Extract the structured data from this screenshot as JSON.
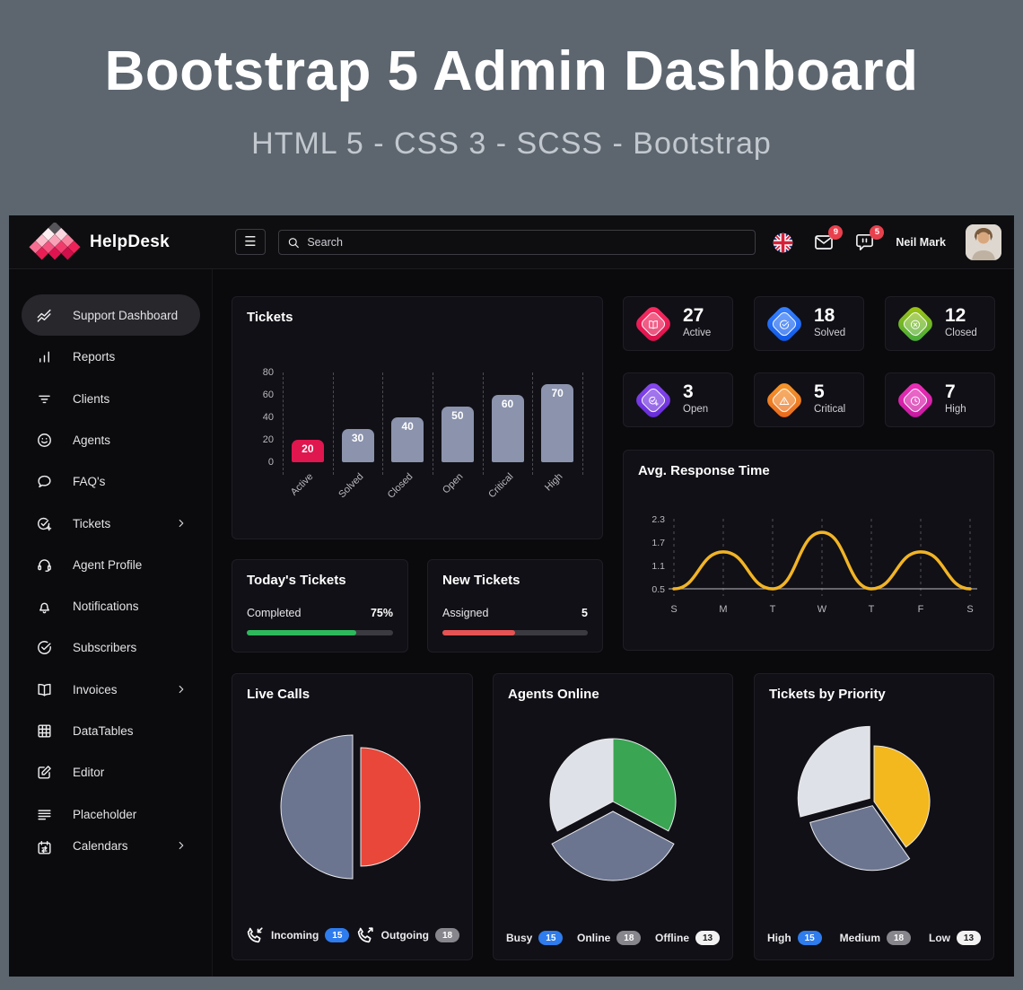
{
  "banner": {
    "title": "Bootstrap 5 Admin Dashboard",
    "subtitle": "HTML 5 - CSS 3 - SCSS - Bootstrap",
    "bg_color": "#5d666f"
  },
  "navbar": {
    "brand": "HelpDesk",
    "search_placeholder": "Search",
    "mail_badge": "9",
    "chat_badge": "5",
    "user_name": "Neil Mark",
    "badge_color": "#e8414d"
  },
  "sidebar": {
    "items": [
      {
        "label": "Support Dashboard",
        "icon": "trend",
        "active": true,
        "chevron": false
      },
      {
        "label": "Reports",
        "icon": "bar-chart",
        "active": false,
        "chevron": false
      },
      {
        "label": "Clients",
        "icon": "filter",
        "active": false,
        "chevron": false
      },
      {
        "label": "Agents",
        "icon": "smiley",
        "active": false,
        "chevron": false
      },
      {
        "label": "FAQ's",
        "icon": "chat",
        "active": false,
        "chevron": false
      },
      {
        "label": "Tickets",
        "icon": "ticket-check",
        "active": false,
        "chevron": true
      },
      {
        "label": "Agent Profile",
        "icon": "headset",
        "active": false,
        "chevron": false
      },
      {
        "label": "Notifications",
        "icon": "bell",
        "active": false,
        "chevron": false
      },
      {
        "label": "Subscribers",
        "icon": "check-circle",
        "active": false,
        "chevron": false
      },
      {
        "label": "Invoices",
        "icon": "book",
        "active": false,
        "chevron": true
      },
      {
        "label": "DataTables",
        "icon": "grid",
        "active": false,
        "chevron": false
      },
      {
        "label": "Editor",
        "icon": "edit",
        "active": false,
        "chevron": false
      },
      {
        "label": "Placeholder",
        "icon": "text-lines",
        "active": false,
        "chevron": false
      },
      {
        "label": "Calendars",
        "icon": "calendar",
        "active": false,
        "chevron": true,
        "clipped": true
      }
    ]
  },
  "stat_cards": [
    {
      "value": "27",
      "label": "Active",
      "glyph": "book",
      "gradient": [
        "#fb2e63",
        "#d90f4b"
      ]
    },
    {
      "value": "18",
      "label": "Solved",
      "glyph": "check-circle",
      "gradient": [
        "#3d86ff",
        "#0a54e8"
      ]
    },
    {
      "value": "12",
      "label": "Closed",
      "glyph": "x-circle",
      "gradient": [
        "#a6c410",
        "#3fa93f"
      ]
    },
    {
      "value": "3",
      "label": "Open",
      "glyph": "check-plus",
      "gradient": [
        "#8a4bf0",
        "#6429d6"
      ]
    },
    {
      "value": "5",
      "label": "Critical",
      "glyph": "alert-triangle",
      "gradient": [
        "#f69a2d",
        "#e9661b"
      ]
    },
    {
      "value": "7",
      "label": "High",
      "glyph": "clock",
      "gradient": [
        "#ef32b8",
        "#c3179f"
      ]
    }
  ],
  "cards": {
    "tickets": {
      "title": "Tickets"
    },
    "avg_response": {
      "title": "Avg. Response Time"
    },
    "todays": {
      "title": "Today's Tickets",
      "row_label": "Completed",
      "row_value": "75%",
      "pct": 75,
      "bar_color": "#2eb85c"
    },
    "new": {
      "title": "New Tickets",
      "row_label": "Assigned",
      "row_value": "5",
      "pct": 50,
      "bar_color": "#e55353"
    },
    "live_calls": {
      "title": "Live Calls"
    },
    "agents_online": {
      "title": "Agents Online"
    },
    "tickets_priority": {
      "title": "Tickets by Priority"
    }
  },
  "chart_data": [
    {
      "id": "tickets-bar",
      "type": "bar",
      "title": "Tickets",
      "categories": [
        "Active",
        "Solved",
        "Closed",
        "Open",
        "Critical",
        "High"
      ],
      "values": [
        20,
        30,
        40,
        50,
        60,
        70
      ],
      "bar_colors": [
        "#e0164f",
        "#8b93ad",
        "#8b93ad",
        "#8b93ad",
        "#8b93ad",
        "#8b93ad"
      ],
      "yticks": [
        80,
        60,
        40,
        20,
        0
      ],
      "ylim": [
        0,
        80
      ],
      "grid": "dashed-vertical"
    },
    {
      "id": "response-line",
      "type": "line",
      "title": "Avg. Response Time",
      "x": [
        "S",
        "M",
        "T",
        "W",
        "T",
        "F",
        "S"
      ],
      "values": [
        0.5,
        1.45,
        0.5,
        1.95,
        0.5,
        1.45,
        0.5
      ],
      "yticks": [
        2.3,
        1.7,
        1.1,
        0.5
      ],
      "ylim": [
        0.5,
        2.3
      ],
      "line_color": "#f2b426",
      "grid": "dashed-vertical"
    },
    {
      "id": "live-pie",
      "type": "pie",
      "title": "Live Calls",
      "series": [
        {
          "name": "Incoming",
          "value": 15
        },
        {
          "name": "Outgoing",
          "value": 18
        }
      ],
      "slices": [
        {
          "name": "incoming",
          "color": "#6b7590",
          "start": 180,
          "end": 360,
          "r": 80,
          "offset": 0
        },
        {
          "name": "outgoing",
          "color": "#e8473a",
          "start": 0,
          "end": 180,
          "r": 66,
          "offset": 9
        }
      ],
      "legend": [
        {
          "label": "Incoming",
          "count": "15",
          "badge_bg": "#2e7ced",
          "badge_fg": "#ffffff",
          "icon": "phone-incoming"
        },
        {
          "label": "Outgoing",
          "count": "18",
          "badge_bg": "#86868c",
          "badge_fg": "#ffffff",
          "icon": "phone-outgoing"
        }
      ]
    },
    {
      "id": "agents-pie",
      "type": "pie",
      "title": "Agents Online",
      "series": [
        {
          "name": "Busy",
          "value": 15
        },
        {
          "name": "Online",
          "value": 18
        },
        {
          "name": "Offline",
          "value": 13
        }
      ],
      "slices": [
        {
          "name": "green",
          "color": "#3aa553",
          "start": 0,
          "end": 118,
          "r": 70,
          "offset": 0
        },
        {
          "name": "slate",
          "color": "#6b7590",
          "start": 118,
          "end": 242,
          "r": 77,
          "offset": 11
        },
        {
          "name": "light",
          "color": "#dfe1e8",
          "start": 242,
          "end": 360,
          "r": 70,
          "offset": 0
        }
      ],
      "legend": [
        {
          "label": "Busy",
          "count": "15",
          "badge_bg": "#2e7ced",
          "badge_fg": "#ffffff"
        },
        {
          "label": "Online",
          "count": "18",
          "badge_bg": "#86868c",
          "badge_fg": "#ffffff"
        },
        {
          "label": "Offline",
          "count": "13",
          "badge_bg": "#f2f2f2",
          "badge_fg": "#1c1c1e"
        }
      ]
    },
    {
      "id": "priority-pie",
      "type": "pie",
      "title": "Tickets by Priority",
      "series": [
        {
          "name": "High",
          "value": 15
        },
        {
          "name": "Medium",
          "value": 18
        },
        {
          "name": "Low",
          "value": 13
        }
      ],
      "slices": [
        {
          "name": "yellow",
          "color": "#f3b81d",
          "start": 0,
          "end": 145,
          "r": 62,
          "offset": 0
        },
        {
          "name": "slate",
          "color": "#6b7590",
          "start": 145,
          "end": 255,
          "r": 72,
          "offset": 5
        },
        {
          "name": "light",
          "color": "#dfe1e8",
          "start": 255,
          "end": 360,
          "r": 80,
          "offset": 6
        }
      ],
      "legend": [
        {
          "label": "High",
          "count": "15",
          "badge_bg": "#2e7ced",
          "badge_fg": "#ffffff"
        },
        {
          "label": "Medium",
          "count": "18",
          "badge_bg": "#86868c",
          "badge_fg": "#ffffff"
        },
        {
          "label": "Low",
          "count": "13",
          "badge_bg": "#f2f2f2",
          "badge_fg": "#1c1c1e"
        }
      ]
    }
  ]
}
